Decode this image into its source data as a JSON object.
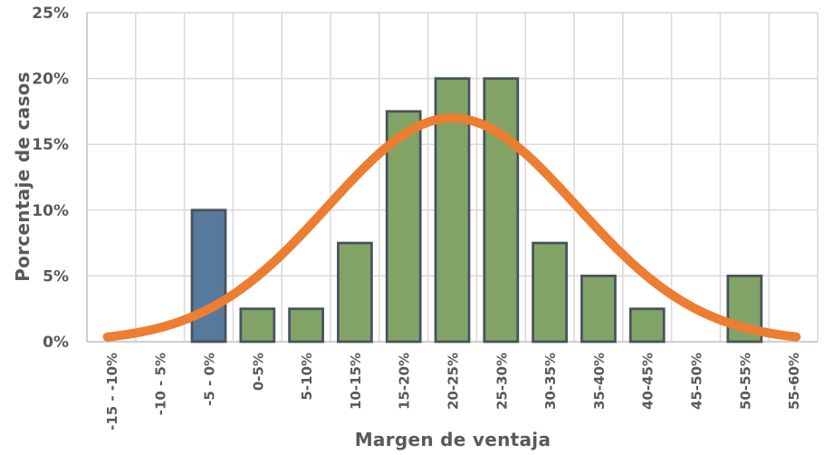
{
  "chart_data": {
    "type": "bar",
    "title": "",
    "xlabel": "Margen de ventaja",
    "ylabel": "Porcentaje de casos",
    "categories": [
      "-15 - -10%",
      "-10 - 5%",
      "-5 - 0%",
      "0-5%",
      "5-10%",
      "10-15%",
      "15-20%",
      "20-25%",
      "25-30%",
      "30-35%",
      "35-40%",
      "40-45%",
      "45-50%",
      "50-55%",
      "55-60%"
    ],
    "values": [
      0,
      0,
      10,
      2.5,
      2.5,
      7.5,
      17.5,
      20,
      20,
      7.5,
      5,
      2.5,
      0,
      5,
      0
    ],
    "highlight_index": 2,
    "ylim": [
      0,
      25
    ],
    "ytick_step": 5,
    "ytick_labels": [
      "0%",
      "5%",
      "10%",
      "15%",
      "20%",
      "25%"
    ],
    "grid": true,
    "legend": "none",
    "curve": {
      "shape": "normal",
      "peak_percent": 17,
      "center_category": "20-25%",
      "center_t": 7.5,
      "sigma_categories": 2.55,
      "span_t": [
        0.42,
        14.57
      ]
    },
    "colors": {
      "bar": "#82A366",
      "highlight_bar": "#57799B",
      "bar_border": "#47525F",
      "curve": "#ED7D31",
      "gridline": "#D9D9D9",
      "axis_line": "#BFBFBF",
      "text": "#595959"
    }
  }
}
